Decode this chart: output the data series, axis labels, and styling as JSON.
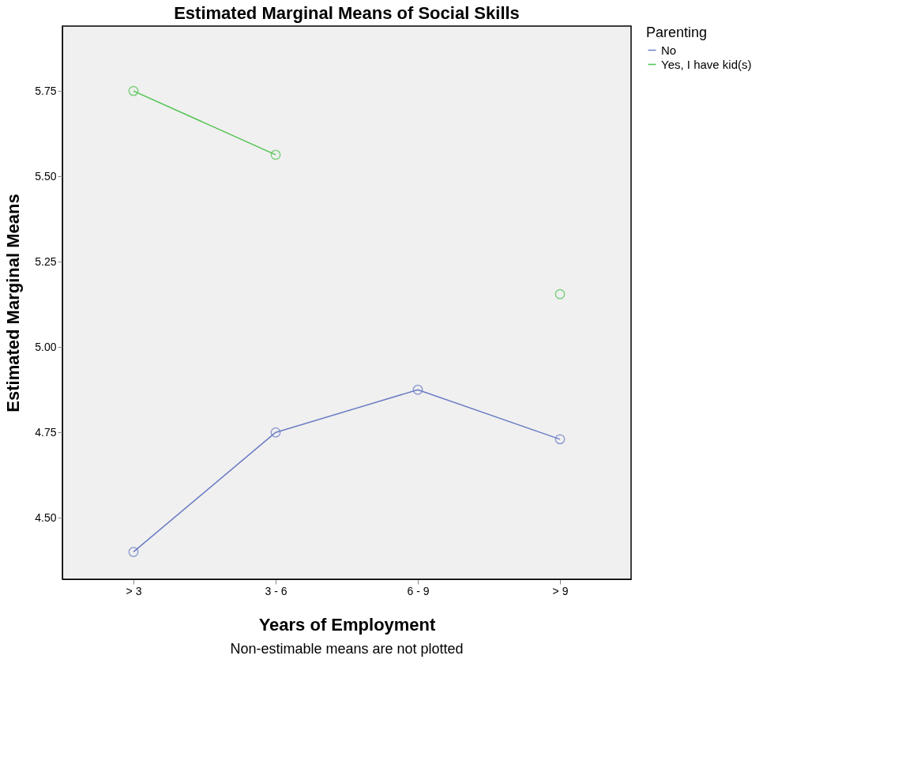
{
  "chart_data": {
    "type": "line",
    "title": "Estimated Marginal Means of Social Skills",
    "xlabel": "Years of Employment",
    "ylabel": "Estimated Marginal Means",
    "legend_title": "Parenting",
    "categories": [
      "> 3",
      "3 - 6",
      "6 - 9",
      "> 9"
    ],
    "series": [
      {
        "name": "No",
        "color": "#6b7cc4",
        "values": [
          4.4,
          4.75,
          4.875,
          4.73
        ]
      },
      {
        "name": "Yes, I have kid(s)",
        "color": "#4fc24f",
        "values": [
          5.75,
          5.563,
          null,
          5.155
        ]
      }
    ],
    "ylim": [
      4.32,
      5.94
    ],
    "yticks": [
      {
        "value": 4.5,
        "label": "4.50"
      },
      {
        "value": 4.75,
        "label": "4.75"
      },
      {
        "value": 5.0,
        "label": "5.00"
      },
      {
        "value": 5.25,
        "label": "5.25"
      },
      {
        "value": 5.5,
        "label": "5.50"
      },
      {
        "value": 5.75,
        "label": "5.75"
      }
    ],
    "grid": false,
    "legend": "top right",
    "marker": "circle",
    "line_style": "solid",
    "annotations": [
      "Non-estimable means are not plotted"
    ]
  }
}
